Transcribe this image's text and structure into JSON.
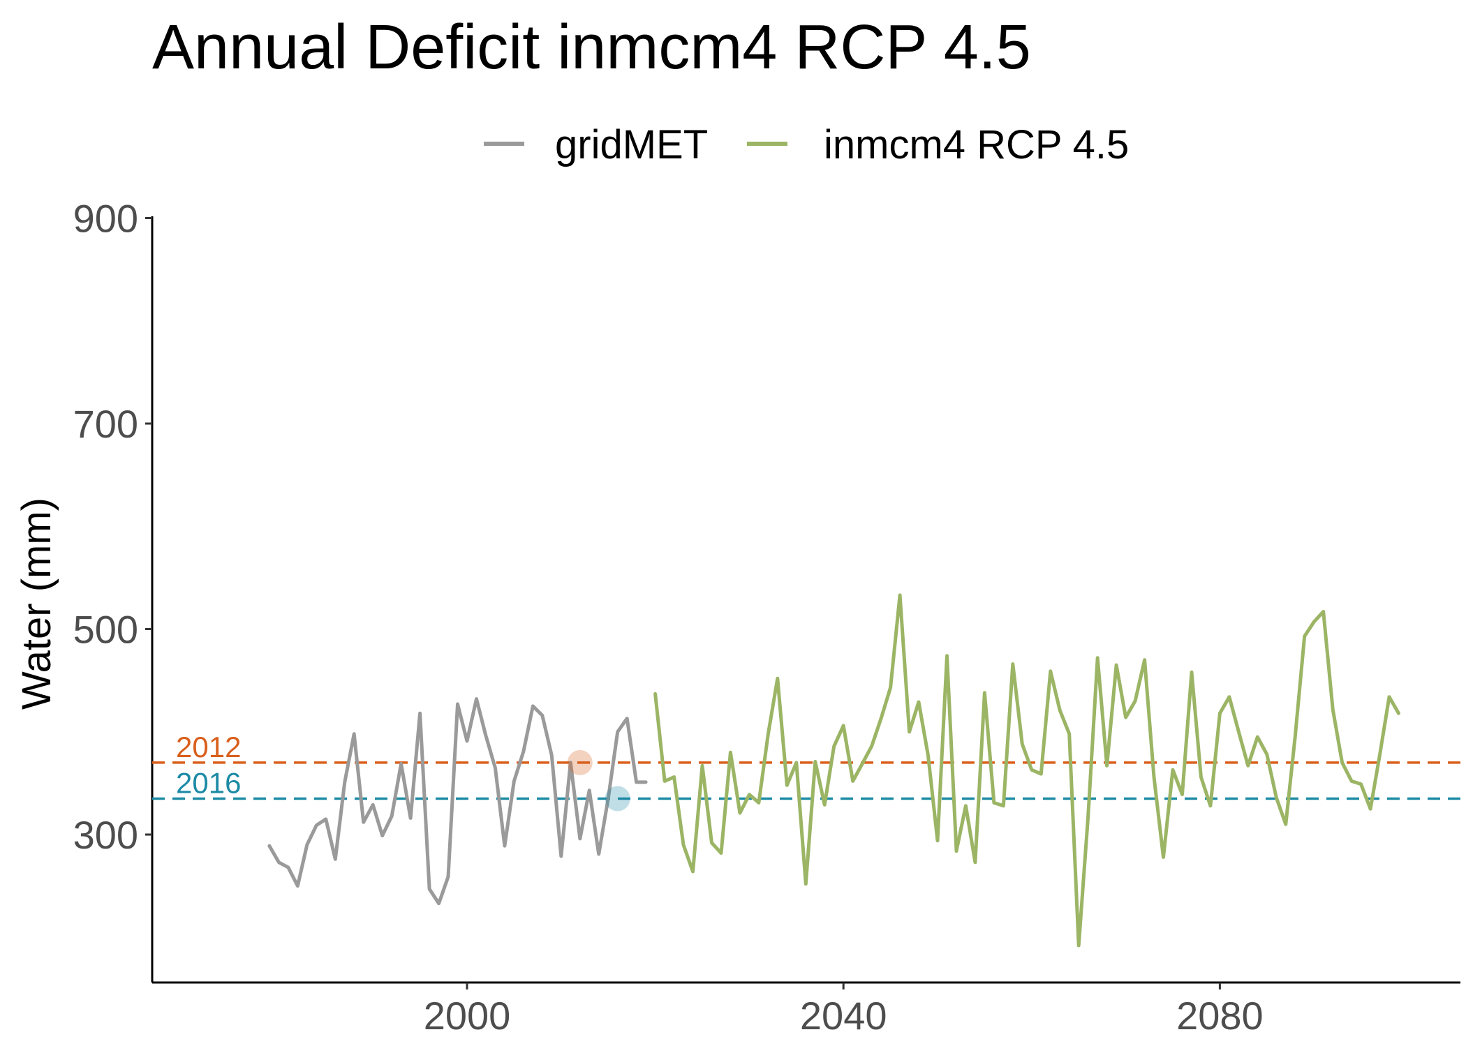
{
  "chart_data": {
    "type": "line",
    "title": "Annual Deficit inmcm4 RCP 4.5",
    "xlabel": "",
    "ylabel": "Water (mm)",
    "xlim": [
      1966,
      2105
    ],
    "ylim": [
      150,
      900
    ],
    "x_ticks": [
      2000,
      2040,
      2080
    ],
    "x_tick_labels": [
      "2000",
      "2040",
      "2080"
    ],
    "y_ticks": [
      300,
      500,
      700,
      900
    ],
    "y_tick_labels": [
      "300",
      "500",
      "700",
      "900"
    ],
    "grid": false,
    "legend": {
      "position": "top",
      "entries": [
        "gridMET",
        "inmcm4 RCP 4.5"
      ]
    },
    "colors": {
      "gridMET": "#9a9a9a",
      "inmcm4 RCP 4.5": "#9bb565",
      "ref2012": "#d95f1b",
      "ref2016": "#1c8aa5"
    },
    "reference_lines": [
      {
        "label": "2012",
        "value": 370,
        "year": 2012
      },
      {
        "label": "2016",
        "value": 335,
        "year": 2016
      }
    ],
    "series": [
      {
        "name": "gridMET",
        "x": [
          1979,
          1980,
          1981,
          1982,
          1983,
          1984,
          1985,
          1986,
          1987,
          1988,
          1989,
          1990,
          1991,
          1992,
          1993,
          1994,
          1995,
          1996,
          1997,
          1998,
          1999,
          2000,
          2001,
          2002,
          2003,
          2004,
          2005,
          2006,
          2007,
          2008,
          2009,
          2010,
          2011,
          2012,
          2013,
          2014,
          2015,
          2016,
          2017,
          2018,
          2019
        ],
        "values": [
          289,
          273,
          268,
          250,
          290,
          309,
          315,
          276,
          351,
          398,
          312,
          329,
          299,
          318,
          369,
          316,
          418,
          247,
          233,
          259,
          427,
          391,
          432,
          396,
          365,
          289,
          352,
          381,
          425,
          416,
          377,
          279,
          370,
          296,
          343,
          281,
          335,
          400,
          413,
          351,
          351
        ]
      },
      {
        "name": "inmcm4 RCP 4.5",
        "x": [
          2020,
          2021,
          2022,
          2023,
          2024,
          2025,
          2026,
          2027,
          2028,
          2029,
          2030,
          2031,
          2032,
          2033,
          2034,
          2035,
          2036,
          2037,
          2038,
          2039,
          2040,
          2041,
          2042,
          2043,
          2044,
          2045,
          2046,
          2047,
          2048,
          2049,
          2050,
          2051,
          2052,
          2053,
          2054,
          2055,
          2056,
          2057,
          2058,
          2059,
          2060,
          2061,
          2062,
          2063,
          2064,
          2065,
          2066,
          2067,
          2068,
          2069,
          2070,
          2071,
          2072,
          2073,
          2074,
          2075,
          2076,
          2077,
          2078,
          2079,
          2080,
          2081,
          2082,
          2083,
          2084,
          2085,
          2086,
          2087,
          2088,
          2089,
          2090,
          2091,
          2092,
          2093,
          2094,
          2095,
          2096,
          2097,
          2098,
          2099
        ],
        "values": [
          437,
          352,
          356,
          290,
          264,
          367,
          292,
          282,
          380,
          321,
          339,
          331,
          398,
          452,
          348,
          370,
          252,
          371,
          329,
          386,
          406,
          352,
          369,
          386,
          413,
          443,
          533,
          400,
          429,
          377,
          294,
          474,
          284,
          328,
          273,
          438,
          331,
          328,
          466,
          388,
          363,
          359,
          459,
          421,
          398,
          192,
          318,
          472,
          367,
          465,
          414,
          430,
          470,
          356,
          278,
          363,
          339,
          458,
          356,
          328,
          418,
          434,
          400,
          367,
          395,
          378,
          336,
          310,
          395,
          493,
          507,
          517,
          422,
          370,
          352,
          349,
          325,
          378,
          434,
          418
        ]
      }
    ]
  }
}
